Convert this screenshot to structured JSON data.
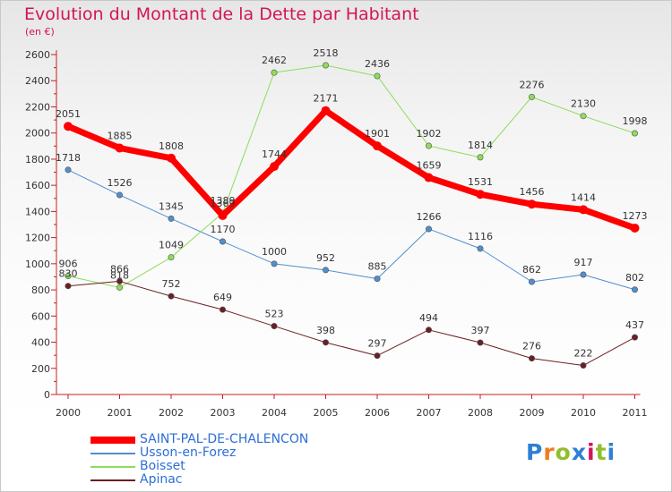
{
  "title": "Evolution du Montant de la Dette par Habitant",
  "subtitle": "(en €)",
  "logo": "Proxiti",
  "chart_data": {
    "type": "line",
    "x": [
      "2000",
      "2001",
      "2002",
      "2003",
      "2004",
      "2005",
      "2006",
      "2007",
      "2008",
      "2009",
      "2010",
      "2011"
    ],
    "ylim": [
      0,
      2600
    ],
    "yticks": [
      0,
      200,
      400,
      600,
      800,
      1000,
      1200,
      1400,
      1600,
      1800,
      2000,
      2200,
      2400,
      2600
    ],
    "grid": false,
    "legend_position": "bottom-left",
    "series": [
      {
        "name": "SAINT-PAL-DE-CHALENCON",
        "color": "#ff0000",
        "width": 7,
        "values": [
          2051,
          1885,
          1808,
          1369,
          1744,
          2171,
          1901,
          1659,
          1531,
          1456,
          1414,
          1273
        ]
      },
      {
        "name": "Usson-en-Forez",
        "color": "#4f8fcf",
        "width": 1,
        "values": [
          1718,
          1526,
          1345,
          1170,
          1000,
          952,
          885,
          1266,
          1116,
          862,
          917,
          802
        ]
      },
      {
        "name": "Boisset",
        "color": "#8fdc5a",
        "width": 1,
        "values": [
          906,
          818,
          1049,
          1389,
          2462,
          2518,
          2436,
          1902,
          1814,
          2276,
          2130,
          1998
        ]
      },
      {
        "name": "Apinac",
        "color": "#6b1f24",
        "width": 1,
        "values": [
          830,
          866,
          752,
          649,
          523,
          398,
          297,
          494,
          397,
          276,
          222,
          437
        ]
      }
    ]
  }
}
